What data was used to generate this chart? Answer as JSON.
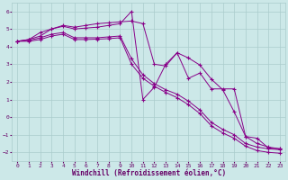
{
  "background_color": "#cce8e8",
  "grid_color": "#aacccc",
  "line_color": "#880088",
  "marker": "+",
  "xlabel": "Windchill (Refroidissement éolien,°C)",
  "xlim": [
    -0.5,
    23.5
  ],
  "ylim": [
    -2.5,
    6.5
  ],
  "yticks": [
    -2,
    -1,
    0,
    1,
    2,
    3,
    4,
    5,
    6
  ],
  "xticks": [
    0,
    1,
    2,
    3,
    4,
    5,
    6,
    7,
    8,
    9,
    10,
    11,
    12,
    13,
    14,
    15,
    16,
    17,
    18,
    19,
    20,
    21,
    22,
    23
  ],
  "series": [
    {
      "x": [
        0,
        1,
        2,
        3,
        4,
        5,
        6,
        7,
        8,
        9,
        10,
        11,
        12,
        13,
        14,
        15,
        16,
        17,
        18,
        19,
        20,
        21,
        22,
        23
      ],
      "y": [
        4.3,
        4.4,
        4.6,
        5.0,
        5.2,
        5.1,
        5.2,
        5.3,
        5.35,
        5.4,
        5.45,
        5.3,
        3.0,
        2.9,
        3.65,
        3.35,
        2.95,
        2.15,
        1.55,
        0.3,
        -1.1,
        -1.5,
        -1.7,
        -1.8
      ]
    },
    {
      "x": [
        0,
        1,
        2,
        3,
        4,
        5,
        6,
        7,
        8,
        9,
        10,
        11,
        12,
        13,
        14,
        15,
        16,
        17,
        18,
        19,
        20,
        21,
        22,
        23
      ],
      "y": [
        4.3,
        4.4,
        4.8,
        5.0,
        5.15,
        5.0,
        5.05,
        5.1,
        5.2,
        5.3,
        6.0,
        1.0,
        1.7,
        3.0,
        3.65,
        2.2,
        2.5,
        1.6,
        1.6,
        1.6,
        -1.1,
        -1.2,
        -1.75,
        -1.8
      ]
    },
    {
      "x": [
        0,
        1,
        2,
        3,
        4,
        5,
        6,
        7,
        8,
        9,
        10,
        11,
        12,
        13,
        14,
        15,
        16,
        17,
        18,
        19,
        20,
        21,
        22,
        23
      ],
      "y": [
        4.3,
        4.35,
        4.5,
        4.7,
        4.8,
        4.5,
        4.5,
        4.5,
        4.55,
        4.6,
        3.3,
        2.4,
        1.9,
        1.55,
        1.3,
        0.9,
        0.4,
        -0.3,
        -0.7,
        -1.0,
        -1.5,
        -1.7,
        -1.8,
        -1.85
      ]
    },
    {
      "x": [
        0,
        1,
        2,
        3,
        4,
        5,
        6,
        7,
        8,
        9,
        10,
        11,
        12,
        13,
        14,
        15,
        16,
        17,
        18,
        19,
        20,
        21,
        22,
        23
      ],
      "y": [
        4.3,
        4.3,
        4.4,
        4.6,
        4.7,
        4.4,
        4.4,
        4.42,
        4.45,
        4.5,
        3.0,
        2.2,
        1.75,
        1.4,
        1.1,
        0.7,
        0.2,
        -0.5,
        -0.9,
        -1.2,
        -1.65,
        -1.9,
        -2.0,
        -2.05
      ]
    }
  ]
}
